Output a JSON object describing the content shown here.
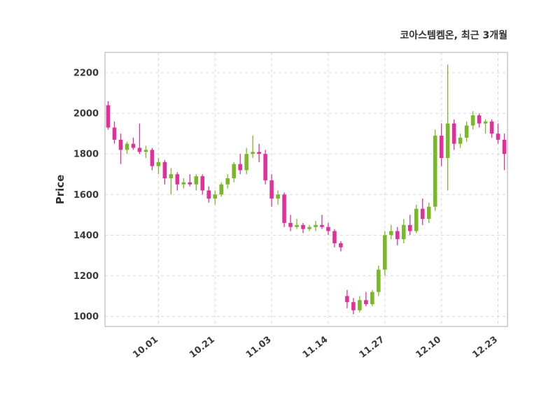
{
  "title": "코아스템켐온, 최근 3개월",
  "chart_data": {
    "type": "candlestick",
    "title": "코아스템켐온, 최근 3개월",
    "ylabel": "Price",
    "ylim": [
      950,
      2300
    ],
    "yticks": [
      1000,
      1200,
      1400,
      1600,
      1800,
      2000,
      2200
    ],
    "xticks": [
      {
        "label": "10.01",
        "i": 8
      },
      {
        "label": "10.21",
        "i": 17
      },
      {
        "label": "11.03",
        "i": 26
      },
      {
        "label": "11.14",
        "i": 35
      },
      {
        "label": "11.27",
        "i": 44
      },
      {
        "label": "12.10",
        "i": 53
      },
      {
        "label": "12.23",
        "i": 62
      }
    ],
    "grid": "dashed",
    "legend": "none",
    "colors": {
      "up": "#79b928",
      "down": "#e2309a",
      "grid": "#d9d9d9",
      "border": "#c9c9c9",
      "text": "#3a3a3a"
    },
    "ohlc_format": "[open, high, low, close]",
    "candles": [
      [
        2040,
        2060,
        1920,
        1930
      ],
      [
        1930,
        1960,
        1850,
        1870
      ],
      [
        1870,
        1900,
        1750,
        1820
      ],
      [
        1820,
        1860,
        1800,
        1850
      ],
      [
        1850,
        1880,
        1820,
        1830
      ],
      [
        1830,
        1950,
        1800,
        1810
      ],
      [
        1810,
        1840,
        1780,
        1820
      ],
      [
        1820,
        1830,
        1720,
        1740
      ],
      [
        1740,
        1780,
        1700,
        1760
      ],
      [
        1760,
        1770,
        1650,
        1680
      ],
      [
        1680,
        1730,
        1600,
        1700
      ],
      [
        1700,
        1710,
        1620,
        1650
      ],
      [
        1650,
        1680,
        1630,
        1660
      ],
      [
        1660,
        1700,
        1640,
        1650
      ],
      [
        1650,
        1700,
        1620,
        1690
      ],
      [
        1690,
        1700,
        1600,
        1620
      ],
      [
        1620,
        1640,
        1560,
        1580
      ],
      [
        1580,
        1620,
        1550,
        1600
      ],
      [
        1600,
        1660,
        1590,
        1650
      ],
      [
        1650,
        1700,
        1630,
        1680
      ],
      [
        1680,
        1760,
        1660,
        1750
      ],
      [
        1750,
        1800,
        1700,
        1720
      ],
      [
        1720,
        1830,
        1700,
        1800
      ],
      [
        1800,
        1890,
        1780,
        1810
      ],
      [
        1810,
        1850,
        1760,
        1800
      ],
      [
        1800,
        1820,
        1650,
        1670
      ],
      [
        1670,
        1700,
        1540,
        1580
      ],
      [
        1580,
        1620,
        1550,
        1600
      ],
      [
        1600,
        1610,
        1440,
        1460
      ],
      [
        1460,
        1500,
        1420,
        1440
      ],
      [
        1440,
        1480,
        1430,
        1450
      ],
      [
        1450,
        1460,
        1410,
        1430
      ],
      [
        1430,
        1450,
        1420,
        1440
      ],
      [
        1440,
        1470,
        1420,
        1450
      ],
      [
        1450,
        1500,
        1430,
        1440
      ],
      [
        1440,
        1460,
        1400,
        1420
      ],
      [
        1420,
        1430,
        1340,
        1360
      ],
      [
        1360,
        1370,
        1320,
        1340
      ],
      [
        1100,
        1130,
        1040,
        1070
      ],
      [
        1070,
        1090,
        1010,
        1030
      ],
      [
        1030,
        1100,
        1020,
        1080
      ],
      [
        1080,
        1120,
        1050,
        1060
      ],
      [
        1060,
        1130,
        1050,
        1120
      ],
      [
        1120,
        1250,
        1100,
        1230
      ],
      [
        1230,
        1420,
        1200,
        1400
      ],
      [
        1400,
        1450,
        1380,
        1420
      ],
      [
        1420,
        1440,
        1350,
        1380
      ],
      [
        1380,
        1480,
        1360,
        1450
      ],
      [
        1450,
        1500,
        1400,
        1420
      ],
      [
        1420,
        1550,
        1410,
        1530
      ],
      [
        1530,
        1580,
        1450,
        1480
      ],
      [
        1480,
        1560,
        1460,
        1540
      ],
      [
        1540,
        1920,
        1520,
        1890
      ],
      [
        1890,
        1950,
        1740,
        1780
      ],
      [
        1780,
        2240,
        1620,
        1950
      ],
      [
        1950,
        1970,
        1820,
        1850
      ],
      [
        1850,
        1900,
        1830,
        1880
      ],
      [
        1880,
        1960,
        1860,
        1940
      ],
      [
        1940,
        2010,
        1920,
        1990
      ],
      [
        1990,
        2000,
        1930,
        1950
      ],
      [
        1950,
        1970,
        1900,
        1960
      ],
      [
        1960,
        1970,
        1880,
        1900
      ],
      [
        1900,
        1950,
        1850,
        1870
      ],
      [
        1870,
        1900,
        1720,
        1800
      ]
    ]
  }
}
